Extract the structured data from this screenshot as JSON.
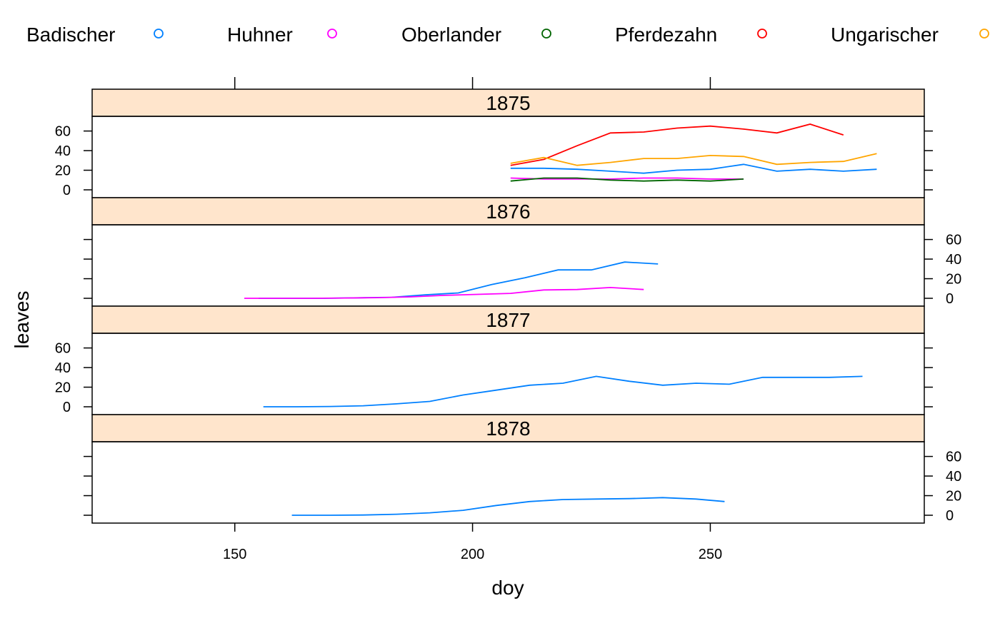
{
  "chart_data": {
    "type": "line",
    "xlabel": "doy",
    "ylabel": "leaves",
    "xlim": [
      120,
      295
    ],
    "ylim": [
      -8,
      75
    ],
    "x_ticks": [
      150,
      200,
      250
    ],
    "y_ticks": [
      0,
      20,
      40,
      60
    ],
    "legend_position": "top",
    "legend": [
      {
        "name": "Badischer",
        "color": "#0080ff"
      },
      {
        "name": "Huhner",
        "color": "#ff00ff"
      },
      {
        "name": "Oberlander",
        "color": "#006400"
      },
      {
        "name": "Pferdezahn",
        "color": "#ff0000"
      },
      {
        "name": "Ungarischer",
        "color": "#ffa500"
      }
    ],
    "panels": [
      {
        "title": "1875",
        "series": [
          {
            "name": "Badischer",
            "x": [
              208,
              215,
              222,
              229,
              236,
              243,
              250,
              257,
              264,
              271,
              278,
              285
            ],
            "y": [
              22,
              22,
              21,
              19,
              17,
              20,
              21,
              26,
              19,
              21,
              19,
              21
            ]
          },
          {
            "name": "Huhner",
            "x": [
              208,
              215,
              222,
              229,
              236,
              243,
              250,
              257
            ],
            "y": [
              12,
              11,
              11,
              11,
              12,
              12,
              11,
              11
            ]
          },
          {
            "name": "Oberlander",
            "x": [
              208,
              215,
              222,
              229,
              236,
              243,
              250,
              257
            ],
            "y": [
              9,
              12,
              12,
              10,
              9,
              10,
              9,
              11
            ]
          },
          {
            "name": "Pferdezahn",
            "x": [
              208,
              215,
              222,
              229,
              236,
              243,
              250,
              257,
              264,
              271,
              278
            ],
            "y": [
              25,
              31,
              45,
              58,
              59,
              63,
              65,
              62,
              58,
              67,
              56
            ]
          },
          {
            "name": "Ungarischer",
            "x": [
              208,
              215,
              222,
              229,
              236,
              243,
              250,
              257,
              264,
              271,
              278,
              285
            ],
            "y": [
              27,
              33,
              25,
              28,
              32,
              32,
              35,
              34,
              26,
              28,
              29,
              37
            ]
          }
        ]
      },
      {
        "title": "1876",
        "series": [
          {
            "name": "Badischer",
            "x": [
              155,
              162,
              169,
              176,
              183,
              190,
              197,
              204,
              211,
              218,
              225,
              232,
              239
            ],
            "y": [
              0,
              0,
              0,
              0.5,
              1,
              3.5,
              5.5,
              14,
              21,
              29,
              29,
              37,
              35
            ]
          },
          {
            "name": "Huhner",
            "x": [
              152,
              159,
              166,
              173,
              180,
              187,
              194,
              201,
              208,
              215,
              222,
              229,
              236
            ],
            "y": [
              0,
              0,
              0,
              0.3,
              0.7,
              1.5,
              3,
              4,
              5,
              8.5,
              9,
              11,
              9
            ]
          }
        ]
      },
      {
        "title": "1877",
        "series": [
          {
            "name": "Badischer",
            "x": [
              156,
              163,
              170,
              177,
              184,
              191,
              198,
              205,
              212,
              219,
              226,
              233,
              240,
              247,
              254,
              261,
              268,
              275,
              282
            ],
            "y": [
              0,
              0,
              0.3,
              1,
              3,
              5.5,
              12,
              17,
              22,
              24,
              31,
              26,
              22,
              24,
              23,
              30,
              30,
              30,
              31
            ]
          }
        ]
      },
      {
        "title": "1878",
        "series": [
          {
            "name": "Badischer",
            "x": [
              162,
              170,
              177,
              184,
              191,
              198,
              205,
              212,
              219,
              226,
              233,
              240,
              247,
              253
            ],
            "y": [
              0,
              0,
              0.2,
              1,
              2.5,
              5,
              10,
              14,
              16,
              16.5,
              17,
              18,
              16.5,
              14
            ]
          }
        ]
      }
    ]
  }
}
